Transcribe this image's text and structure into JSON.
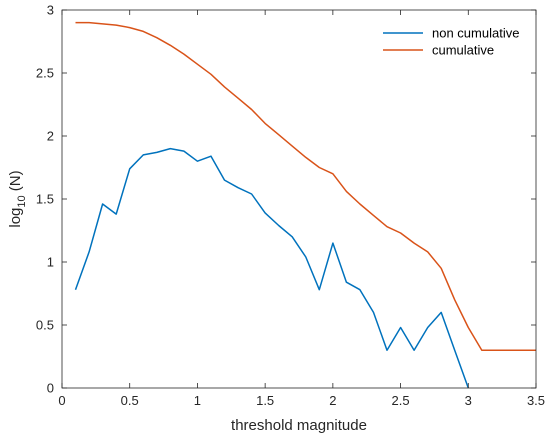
{
  "chart_data": {
    "type": "line",
    "xlabel": "threshold magnitude",
    "ylabel_main": "log",
    "ylabel_sub": "10",
    "ylabel_rest": " (N)",
    "xlim": [
      0,
      3.5
    ],
    "ylim": [
      0,
      3
    ],
    "xticks": [
      "0",
      "0.5",
      "1",
      "1.5",
      "2",
      "2.5",
      "3",
      "3.5"
    ],
    "yticks": [
      "0",
      "0.5",
      "1",
      "1.5",
      "2",
      "2.5",
      "3"
    ],
    "grid": false,
    "legend_position": "top-right",
    "series": [
      {
        "name": "non cumulative",
        "color": "#0072BD",
        "x": [
          0.1,
          0.2,
          0.3,
          0.4,
          0.5,
          0.6,
          0.7,
          0.8,
          0.9,
          1.0,
          1.1,
          1.2,
          1.3,
          1.4,
          1.5,
          1.6,
          1.7,
          1.8,
          1.9,
          2.0,
          2.1,
          2.2,
          2.3,
          2.4,
          2.5,
          2.6,
          2.7,
          2.8,
          2.9,
          3.0
        ],
        "y": [
          0.78,
          1.08,
          1.46,
          1.38,
          1.74,
          1.85,
          1.87,
          1.9,
          1.88,
          1.8,
          1.84,
          1.65,
          1.59,
          1.54,
          1.39,
          1.29,
          1.2,
          1.04,
          0.78,
          1.15,
          0.84,
          0.78,
          0.6,
          0.3,
          0.48,
          0.3,
          0.48,
          0.6,
          0.3,
          0.0
        ]
      },
      {
        "name": "cumulative",
        "color": "#D95319",
        "x": [
          0.1,
          0.2,
          0.3,
          0.4,
          0.5,
          0.6,
          0.7,
          0.8,
          0.9,
          1.0,
          1.1,
          1.2,
          1.3,
          1.4,
          1.5,
          1.6,
          1.7,
          1.8,
          1.9,
          2.0,
          2.1,
          2.2,
          2.3,
          2.4,
          2.5,
          2.6,
          2.7,
          2.8,
          2.9,
          3.0,
          3.1,
          3.2,
          3.3,
          3.4,
          3.5
        ],
        "y": [
          2.9,
          2.9,
          2.89,
          2.88,
          2.86,
          2.83,
          2.78,
          2.72,
          2.65,
          2.57,
          2.49,
          2.39,
          2.3,
          2.21,
          2.1,
          2.01,
          1.92,
          1.83,
          1.75,
          1.7,
          1.56,
          1.46,
          1.37,
          1.28,
          1.23,
          1.15,
          1.08,
          0.95,
          0.7,
          0.48,
          0.3,
          0.3,
          0.3,
          0.3,
          0.3
        ]
      }
    ]
  }
}
